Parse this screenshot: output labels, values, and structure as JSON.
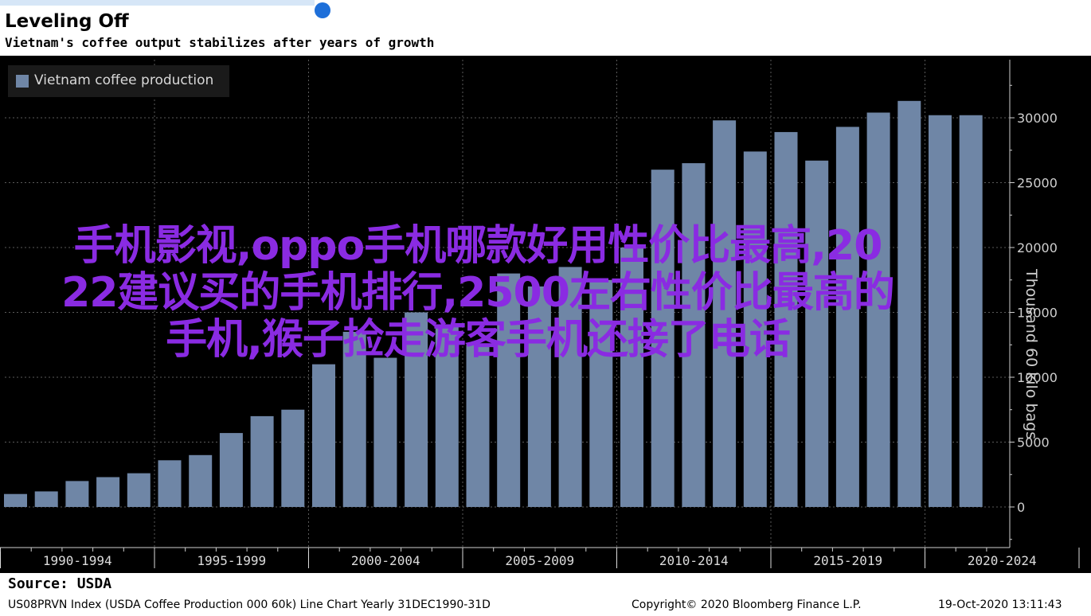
{
  "header": {
    "title": "Leveling Off",
    "subtitle": "Vietnam's coffee output stabilizes after years of growth"
  },
  "chart_data": {
    "type": "bar",
    "title": "Leveling Off",
    "subtitle": "Vietnam's coffee output stabilizes after years of growth",
    "ylabel": "Thousand 60 kilo bags",
    "xlabel": "",
    "ylim": [
      -3000,
      35000
    ],
    "yticks": [
      0,
      5000,
      10000,
      15000,
      20000,
      25000,
      30000
    ],
    "ytick_labels": [
      "0",
      "5000",
      "10000",
      "15000",
      "20000",
      "25000",
      "30000"
    ],
    "grid": true,
    "legend_position": "top-left",
    "series": [
      {
        "name": "Vietnam coffee production",
        "color": "#6f86a6",
        "x": [
          1990,
          1991,
          1992,
          1993,
          1994,
          1995,
          1996,
          1997,
          1998,
          1999,
          2000,
          2001,
          2002,
          2003,
          2004,
          2005,
          2006,
          2007,
          2008,
          2009,
          2010,
          2011,
          2012,
          2013,
          2014,
          2015,
          2016,
          2017,
          2018,
          2019,
          2020,
          2021
        ],
        "values": [
          1000,
          1200,
          2000,
          2300,
          2600,
          3600,
          4000,
          5700,
          7000,
          7500,
          11000,
          13500,
          11500,
          15000,
          14000,
          12500,
          18000,
          17000,
          18500,
          17500,
          20000,
          26000,
          26500,
          29800,
          27400,
          28900,
          26700,
          29300,
          30400,
          31300,
          30200,
          30200
        ]
      }
    ],
    "period_labels": [
      "1990-1994",
      "1995-1999",
      "2000-2004",
      "2005-2009",
      "2010-2014",
      "2015-2019",
      "2020-2024"
    ]
  },
  "legend": {
    "label": "Vietnam coffee production"
  },
  "overlay": {
    "line1": "手机影视,oppo手机哪款好用性价比最高,20",
    "line2": "22建议买的手机排行,2500左右性价比最高的",
    "line3": "手机,猴子捡走游客手机还接了电话"
  },
  "footer": {
    "source": "Source: USDA",
    "index": "US08PRVN Index (USDA Coffee Production 000 60k) Line Chart  Yearly 31DEC1990-31D",
    "copyright": "Copyright© 2020 Bloomberg Finance L.P.",
    "timestamp": "19-Oct-2020 13:11:43"
  },
  "colors": {
    "bar": "#6f86a6",
    "background": "#000000",
    "overlay_text": "#8a2be2",
    "accent_dot": "#1e6fd9"
  }
}
